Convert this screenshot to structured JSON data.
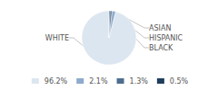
{
  "chart_data": {
    "type": "pie",
    "categories": [
      "WHITE",
      "ASIAN",
      "HISPANIC",
      "BLACK"
    ],
    "values": [
      96.2,
      2.1,
      1.3,
      0.5
    ],
    "value_labels": [
      "96.2%",
      "2.1%",
      "1.3%",
      "0.5%"
    ],
    "colors": [
      "#dce6f0",
      "#8eaacc",
      "#4f6d8f",
      "#1f3d5c"
    ],
    "legend": "bottom"
  }
}
